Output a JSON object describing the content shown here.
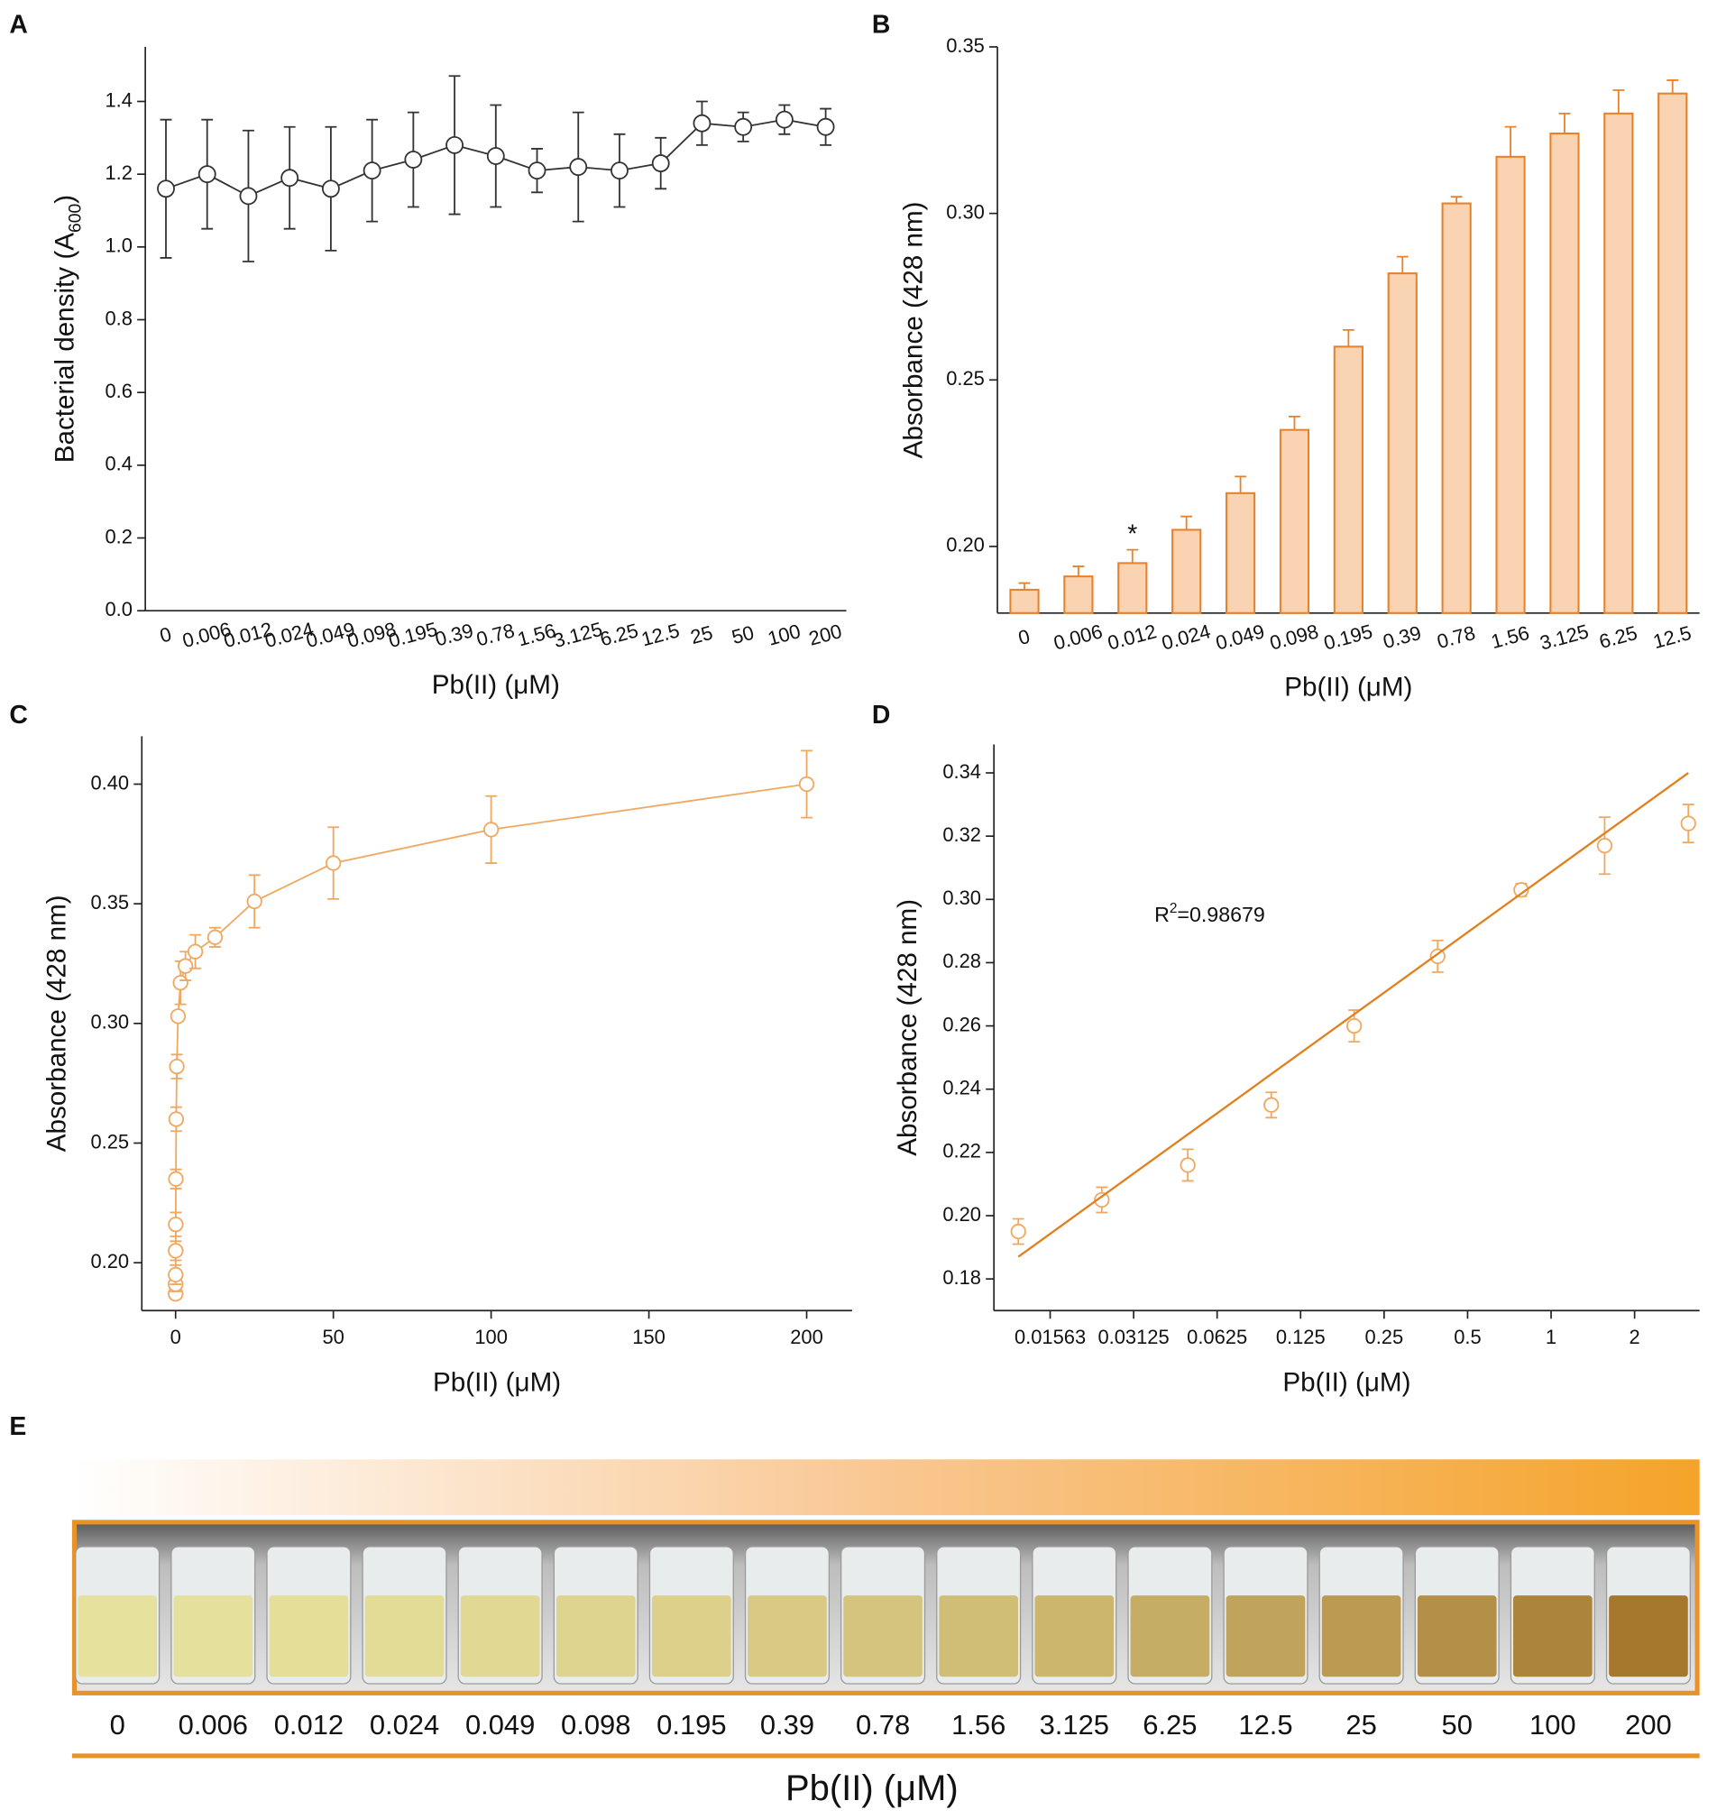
{
  "chart_data": [
    {
      "panel": "A",
      "type": "line",
      "categories": [
        "0",
        "0.006",
        "0.012",
        "0.024",
        "0.049",
        "0.098",
        "0.195",
        "0.39",
        "0.78",
        "1.56",
        "3.125",
        "6.25",
        "12.5",
        "25",
        "50",
        "100",
        "200"
      ],
      "series": [
        {
          "color": "#333333",
          "values": [
            1.16,
            1.2,
            1.14,
            1.19,
            1.16,
            1.21,
            1.24,
            1.28,
            1.25,
            1.21,
            1.22,
            1.21,
            1.23,
            1.34,
            1.33,
            1.35,
            1.33
          ],
          "errors": [
            0.19,
            0.15,
            0.18,
            0.14,
            0.17,
            0.14,
            0.13,
            0.19,
            0.14,
            0.06,
            0.15,
            0.1,
            0.07,
            0.06,
            0.04,
            0.04,
            0.05
          ]
        }
      ],
      "xlabel": "Pb(II) (μM)",
      "ylabel": [
        "Bacterial density (A",
        "600",
        ")"
      ],
      "ylim": [
        0,
        1.55
      ],
      "yticks": [
        {
          "value": 0,
          "label": "0.0"
        },
        0.2,
        0.4,
        0.6,
        0.8,
        {
          "value": 1,
          "label": "1.0"
        },
        1.2,
        1.4
      ]
    },
    {
      "panel": "B",
      "type": "bar",
      "categories": [
        "0",
        "0.006",
        "0.012",
        "0.024",
        "0.049",
        "0.098",
        "0.195",
        "0.39",
        "0.78",
        "1.56",
        "3.125",
        "6.25",
        "12.5"
      ],
      "series": [
        {
          "color": "#e8822a",
          "fill": "#f9d3b2",
          "values": [
            0.187,
            0.191,
            0.195,
            0.205,
            0.216,
            0.235,
            0.26,
            0.282,
            0.303,
            0.317,
            0.324,
            0.33,
            0.336
          ],
          "errors": [
            0.002,
            0.003,
            0.004,
            0.004,
            0.005,
            0.004,
            0.005,
            0.005,
            0.002,
            0.009,
            0.006,
            0.007,
            0.004
          ]
        }
      ],
      "annotations": [
        {
          "text": "*",
          "category": "0.012"
        }
      ],
      "xlabel": "Pb(II) (μM)",
      "ylabel": [
        "Absorbance (428 nm)"
      ],
      "ylim": [
        0.18,
        0.35
      ],
      "yticks": [
        {
          "value": 0.2,
          "label": "0.20"
        },
        0.25,
        {
          "value": 0.3,
          "label": "0.30"
        },
        0.35
      ]
    },
    {
      "panel": "C",
      "type": "line",
      "x": [
        0,
        0.006,
        0.012,
        0.024,
        0.049,
        0.098,
        0.195,
        0.39,
        0.78,
        1.56,
        3.125,
        6.25,
        12.5,
        25,
        50,
        100,
        200
      ],
      "series": [
        {
          "color": "#f0a860",
          "values": [
            0.187,
            0.191,
            0.195,
            0.205,
            0.216,
            0.235,
            0.26,
            0.282,
            0.303,
            0.317,
            0.324,
            0.33,
            0.336,
            0.351,
            0.367,
            0.381,
            0.4
          ],
          "errors": [
            0.002,
            0.003,
            0.004,
            0.004,
            0.005,
            0.004,
            0.005,
            0.005,
            0.002,
            0.009,
            0.006,
            0.007,
            0.004,
            0.011,
            0.015,
            0.014,
            0.014
          ]
        }
      ],
      "xlabel": "Pb(II) (μM)",
      "ylabel": [
        "Absorbance (428 nm)"
      ],
      "xlim": [
        -10.7,
        214.4
      ],
      "xticks": [
        0,
        50,
        100,
        150,
        200
      ],
      "ylim": [
        0.18,
        0.42
      ],
      "yticks": [
        {
          "value": 0.2,
          "label": "0.20"
        },
        0.25,
        {
          "value": 0.3,
          "label": "0.30"
        },
        0.35,
        {
          "value": 0.4,
          "label": "0.40"
        }
      ]
    },
    {
      "panel": "D",
      "type": "scatter",
      "xscale": "log",
      "x": [
        0.012,
        0.024,
        0.049,
        0.098,
        0.195,
        0.39,
        0.78,
        1.56,
        3.125
      ],
      "series": [
        {
          "color": "#f0a860",
          "values": [
            0.195,
            0.205,
            0.216,
            0.235,
            0.26,
            0.282,
            0.303,
            0.317,
            0.324
          ],
          "errors": [
            0.004,
            0.004,
            0.005,
            0.004,
            0.005,
            0.005,
            0.002,
            0.009,
            0.006
          ]
        }
      ],
      "fit": {
        "color": "#e0801f",
        "x": [
          0.012,
          3.125
        ],
        "values": [
          0.187,
          0.34
        ]
      },
      "annotation": [
        "R",
        "2",
        "=0.98679"
      ],
      "xlabel": "Pb(II) (μM)",
      "ylabel": [
        "Absorbance (428 nm)"
      ],
      "xlim": [
        0.0098,
        3.43
      ],
      "xticks": [
        0.01563,
        0.03125,
        0.0625,
        0.125,
        0.25,
        0.5,
        1,
        2
      ],
      "ylim": [
        0.17,
        0.349
      ],
      "yticks": [
        0.18,
        {
          "value": 0.2,
          "label": "0.20"
        },
        0.22,
        0.24,
        0.26,
        0.28,
        {
          "value": 0.3,
          "label": "0.30"
        },
        0.32,
        0.34
      ]
    }
  ],
  "photo_panel": {
    "panel": "E",
    "labels": [
      "0",
      "0.006",
      "0.012",
      "0.024",
      "0.049",
      "0.098",
      "0.195",
      "0.39",
      "0.78",
      "1.56",
      "3.125",
      "6.25",
      "12.5",
      "25",
      "50",
      "100",
      "200"
    ],
    "xlabel": "Pb(II) (μM)"
  }
}
